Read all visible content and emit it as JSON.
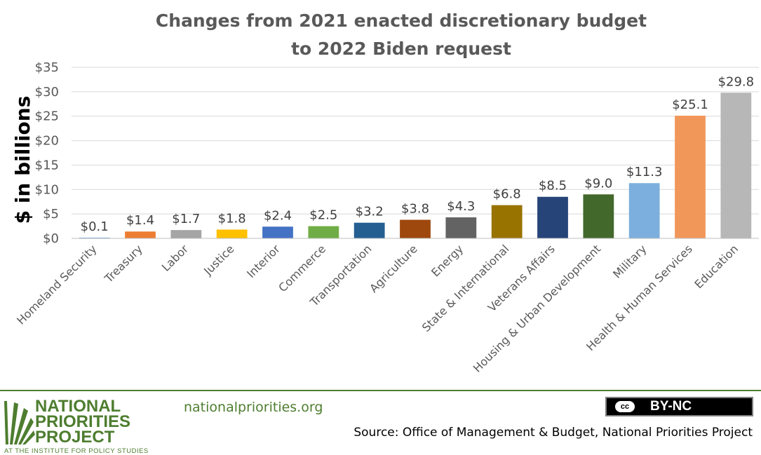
{
  "chart_data": {
    "type": "bar",
    "title": [
      "Changes from 2021 enacted discretionary budget",
      "to 2022 Biden request"
    ],
    "ylabel": "$ in billions",
    "xlabel": "",
    "ylim": [
      0,
      35
    ],
    "yticks": [
      0,
      5,
      10,
      15,
      20,
      25,
      30,
      35
    ],
    "ytick_labels": [
      "$0",
      "$5",
      "$10",
      "$15",
      "$20",
      "$25",
      "$30",
      "$35"
    ],
    "grid": true,
    "categories": [
      "Homeland Security",
      "Treasury",
      "Labor",
      "Justice",
      "Interior",
      "Commerce",
      "Transportation",
      "Agriculture",
      "Energy",
      "State & International",
      "Veterans Affairs",
      "Housing & Urban Development",
      "Military",
      "Health & Human Services",
      "Education"
    ],
    "values": [
      0.1,
      1.4,
      1.7,
      1.8,
      2.4,
      2.5,
      3.2,
      3.8,
      4.3,
      6.8,
      8.5,
      9.0,
      11.3,
      25.1,
      29.8
    ],
    "data_labels": [
      "$0.1",
      "$1.4",
      "$1.7",
      "$1.8",
      "$2.4",
      "$2.5",
      "$3.2",
      "$3.8",
      "$4.3",
      "$6.8",
      "$8.5",
      "$9.0",
      "$11.3",
      "$25.1",
      "$29.8"
    ],
    "colors": [
      "#5b9bd5",
      "#ed7d31",
      "#a5a5a5",
      "#ffc000",
      "#4472c4",
      "#70ad47",
      "#255e91",
      "#9e480e",
      "#636363",
      "#997300",
      "#264478",
      "#43682b",
      "#7cafdd",
      "#f1975a",
      "#b7b7b7"
    ]
  },
  "footer": {
    "logo_line1": "NATIONAL",
    "logo_line2": "PRIORITIES",
    "logo_line3": "PROJECT",
    "logo_sub": "AT THE INSTITUTE FOR POLICY STUDIES",
    "website": "nationalpriorities.org",
    "license_badge": "cc",
    "license": "BY-NC",
    "source": "Source: Office of Management & Budget, National Priorities Project"
  },
  "colors": {
    "brand_green": "#4e7d2f",
    "title_gray": "#595959"
  }
}
